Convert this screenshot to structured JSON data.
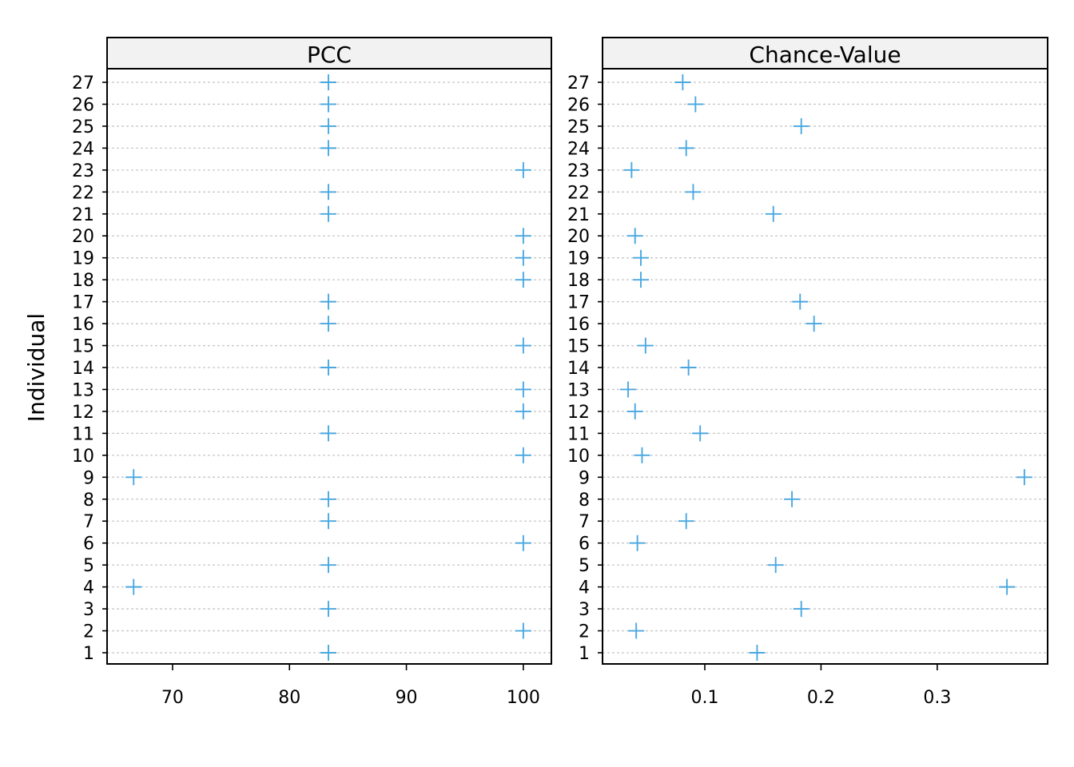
{
  "chart_data": {
    "type": "scatter",
    "ylabel": "Individual",
    "categories": [
      "1",
      "2",
      "3",
      "4",
      "5",
      "6",
      "7",
      "8",
      "9",
      "10",
      "11",
      "12",
      "13",
      "14",
      "15",
      "16",
      "17",
      "18",
      "19",
      "20",
      "21",
      "22",
      "23",
      "24",
      "25",
      "26",
      "27"
    ],
    "marker_color": "#4aa8e0",
    "grid": true,
    "panels": [
      {
        "title": "PCC",
        "xlim": [
          64.4,
          102.4
        ],
        "xticks": [
          "70",
          "80",
          "90",
          "100"
        ],
        "xtick_values": [
          70,
          80,
          90,
          100
        ],
        "values": [
          83.33,
          100,
          83.33,
          66.67,
          83.33,
          100,
          83.33,
          83.33,
          66.67,
          100,
          83.33,
          100,
          100,
          83.33,
          100,
          83.33,
          83.33,
          100,
          100,
          100,
          83.33,
          83.33,
          100,
          83.33,
          83.33,
          83.33,
          83.33
        ]
      },
      {
        "title": "Chance-Value",
        "xlim": [
          0.012,
          0.395
        ],
        "xticks": [
          "0.1",
          "0.2",
          "0.3"
        ],
        "xtick_values": [
          0.1,
          0.2,
          0.3
        ],
        "values": [
          0.145,
          0.041,
          0.183,
          0.36,
          0.161,
          0.042,
          0.084,
          0.175,
          0.375,
          0.046,
          0.096,
          0.04,
          0.034,
          0.086,
          0.049,
          0.194,
          0.182,
          0.045,
          0.045,
          0.04,
          0.159,
          0.09,
          0.037,
          0.084,
          0.183,
          0.092,
          0.081
        ]
      }
    ]
  }
}
